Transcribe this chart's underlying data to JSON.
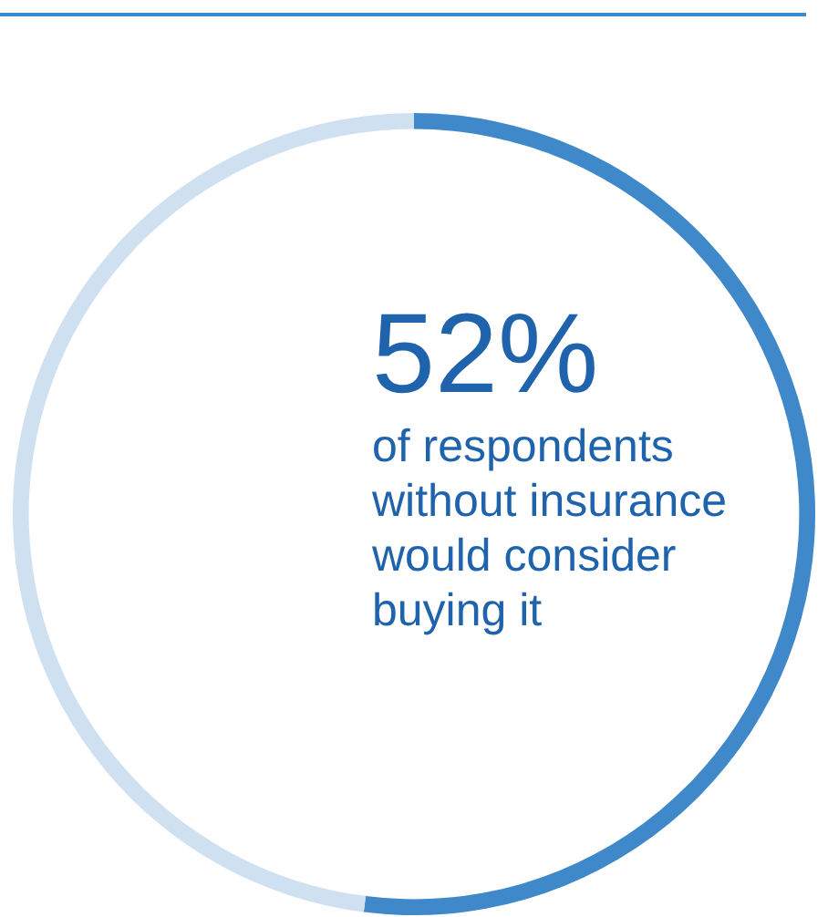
{
  "chart_data": {
    "type": "donut",
    "categories": [
      null,
      null
    ],
    "values": [
      52,
      48
    ],
    "colors": [
      "#3f88c9",
      "#cfe1f1"
    ],
    "value_labels": [
      "52%",
      null
    ],
    "annotations": [
      "of respondents without insurance would consider buying it"
    ]
  }
}
